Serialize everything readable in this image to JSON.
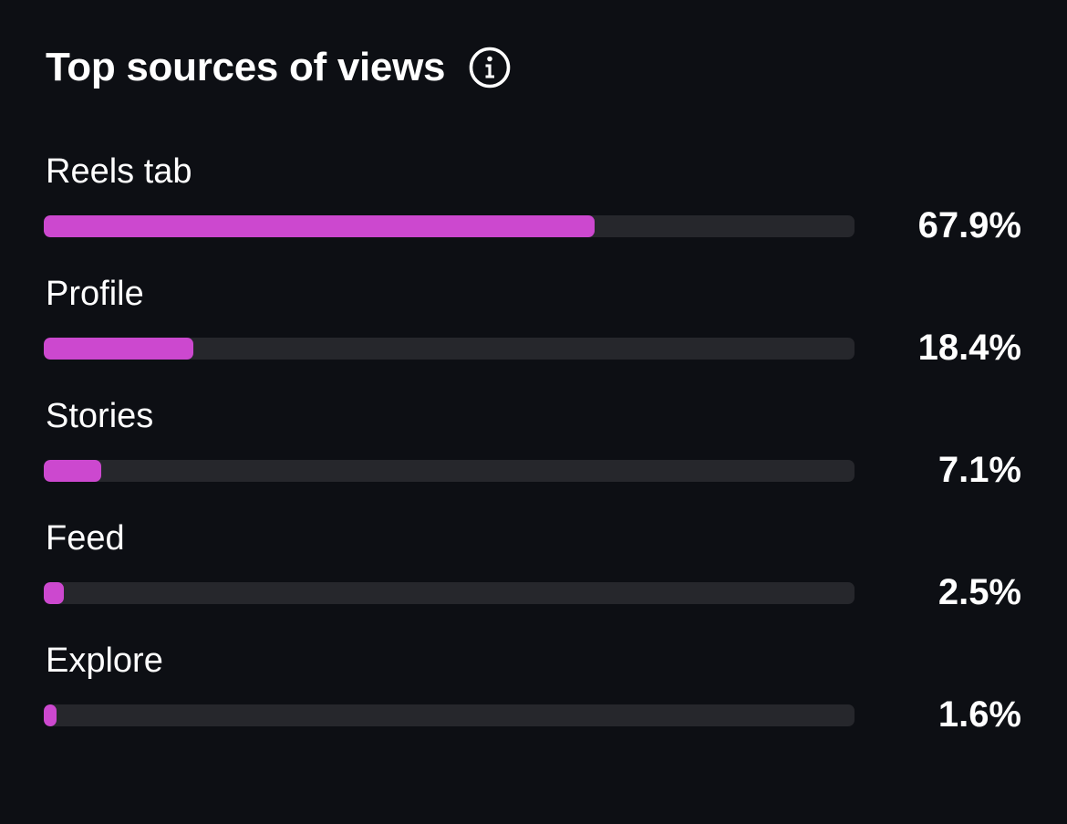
{
  "header": {
    "title": "Top sources of views",
    "info_icon": "info-circle-icon"
  },
  "colors": {
    "background": "#0d0f14",
    "bar_fill": "#cc48cf",
    "bar_track": "#26272c",
    "text": "#ffffff"
  },
  "sources": [
    {
      "label": "Reels tab",
      "percent_text": "67.9%",
      "value": 67.9
    },
    {
      "label": "Profile",
      "percent_text": "18.4%",
      "value": 18.4
    },
    {
      "label": "Stories",
      "percent_text": "7.1%",
      "value": 7.1
    },
    {
      "label": "Feed",
      "percent_text": "2.5%",
      "value": 2.5
    },
    {
      "label": "Explore",
      "percent_text": "1.6%",
      "value": 1.6
    }
  ]
}
